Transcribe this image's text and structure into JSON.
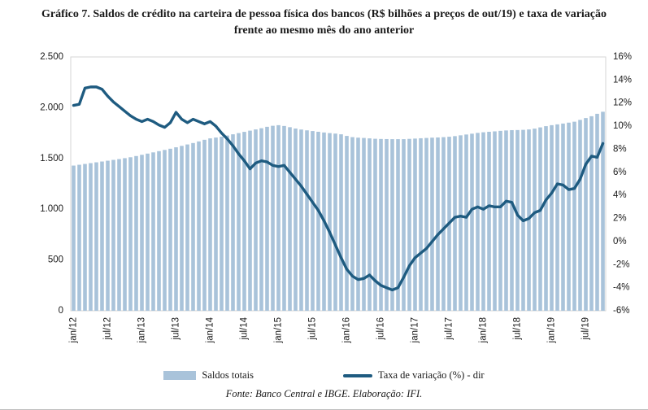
{
  "title": "Gráfico 7. Saldos de crédito na carteira de pessoa física dos bancos (R$ bilhões a preços de out/19) e taxa de variação frente ao mesmo mês do ano anterior",
  "source": "Fonte: Banco Central e IBGE. Elaboração: IFI.",
  "legend": {
    "bars_label": "Saldos totais",
    "line_label": "Taxa de variação (%) - dir"
  },
  "colors": {
    "bar": "#A9C3DA",
    "line": "#1E5B80",
    "plot_border": "#D6D6D6",
    "text": "#1A1A1A"
  },
  "chart_data": {
    "type": "bar+line combo, monthly jan/12–out/19",
    "grid": "off",
    "legend_position": "bottom",
    "x_tick_labels": [
      "jan/12",
      "jul/12",
      "jan/13",
      "jul/13",
      "jan/14",
      "jul/14",
      "jan/15",
      "jul/15",
      "jan/16",
      "jul/16",
      "jan/17",
      "jul/17",
      "jan/18",
      "jul/18",
      "jan/19",
      "jul/19"
    ],
    "x_tick_every": 6,
    "left_axis": {
      "min": 0,
      "max": 2500,
      "ticks": [
        "0",
        "500",
        "1.000",
        "1.500",
        "2.000",
        "2.500"
      ]
    },
    "right_axis": {
      "min": -6,
      "max": 16,
      "ticks": [
        "-6%",
        "-4%",
        "-2%",
        "0%",
        "2%",
        "4%",
        "6%",
        "8%",
        "10%",
        "12%",
        "14%",
        "16%"
      ]
    },
    "series": [
      {
        "name": "Saldos totais",
        "type": "bar",
        "axis": "left",
        "values": [
          1430,
          1438,
          1446,
          1454,
          1462,
          1470,
          1478,
          1486,
          1494,
          1503,
          1512,
          1524,
          1536,
          1548,
          1560,
          1572,
          1584,
          1596,
          1610,
          1624,
          1638,
          1652,
          1668,
          1684,
          1698,
          1706,
          1714,
          1726,
          1738,
          1750,
          1762,
          1774,
          1786,
          1798,
          1812,
          1822,
          1828,
          1820,
          1808,
          1795,
          1785,
          1777,
          1770,
          1763,
          1756,
          1750,
          1745,
          1738,
          1722,
          1710,
          1705,
          1702,
          1698,
          1694,
          1692,
          1691,
          1690,
          1690,
          1690,
          1693,
          1696,
          1699,
          1702,
          1705,
          1707,
          1710,
          1714,
          1720,
          1728,
          1736,
          1744,
          1752,
          1758,
          1763,
          1767,
          1772,
          1776,
          1779,
          1780,
          1782,
          1786,
          1794,
          1806,
          1818,
          1828,
          1836,
          1844,
          1853,
          1862,
          1880,
          1898,
          1916,
          1940,
          1960
        ]
      },
      {
        "name": "Taxa de variação (%) - dir",
        "type": "line",
        "axis": "right",
        "values": [
          11.8,
          11.9,
          13.3,
          13.4,
          13.4,
          13.2,
          12.6,
          12.1,
          11.7,
          11.3,
          10.9,
          10.6,
          10.4,
          10.6,
          10.4,
          10.1,
          9.9,
          10.3,
          11.2,
          10.6,
          10.3,
          10.6,
          10.4,
          10.2,
          10.4,
          10.0,
          9.4,
          8.9,
          8.3,
          7.6,
          7.0,
          6.3,
          6.8,
          7.0,
          6.9,
          6.6,
          6.5,
          6.6,
          6.0,
          5.4,
          4.8,
          4.1,
          3.4,
          2.7,
          1.8,
          0.8,
          -0.3,
          -1.4,
          -2.4,
          -3.0,
          -3.3,
          -3.2,
          -2.9,
          -3.4,
          -3.8,
          -4.0,
          -4.2,
          -4.0,
          -3.1,
          -2.1,
          -1.4,
          -1.0,
          -0.6,
          0.0,
          0.6,
          1.1,
          1.6,
          2.1,
          2.2,
          2.1,
          2.8,
          3.0,
          2.8,
          3.1,
          3.0,
          3.0,
          3.5,
          3.4,
          2.3,
          1.8,
          2.0,
          2.5,
          2.7,
          3.6,
          4.2,
          5.0,
          4.9,
          4.5,
          4.6,
          5.4,
          6.7,
          7.4,
          7.3,
          8.5
        ]
      }
    ]
  }
}
